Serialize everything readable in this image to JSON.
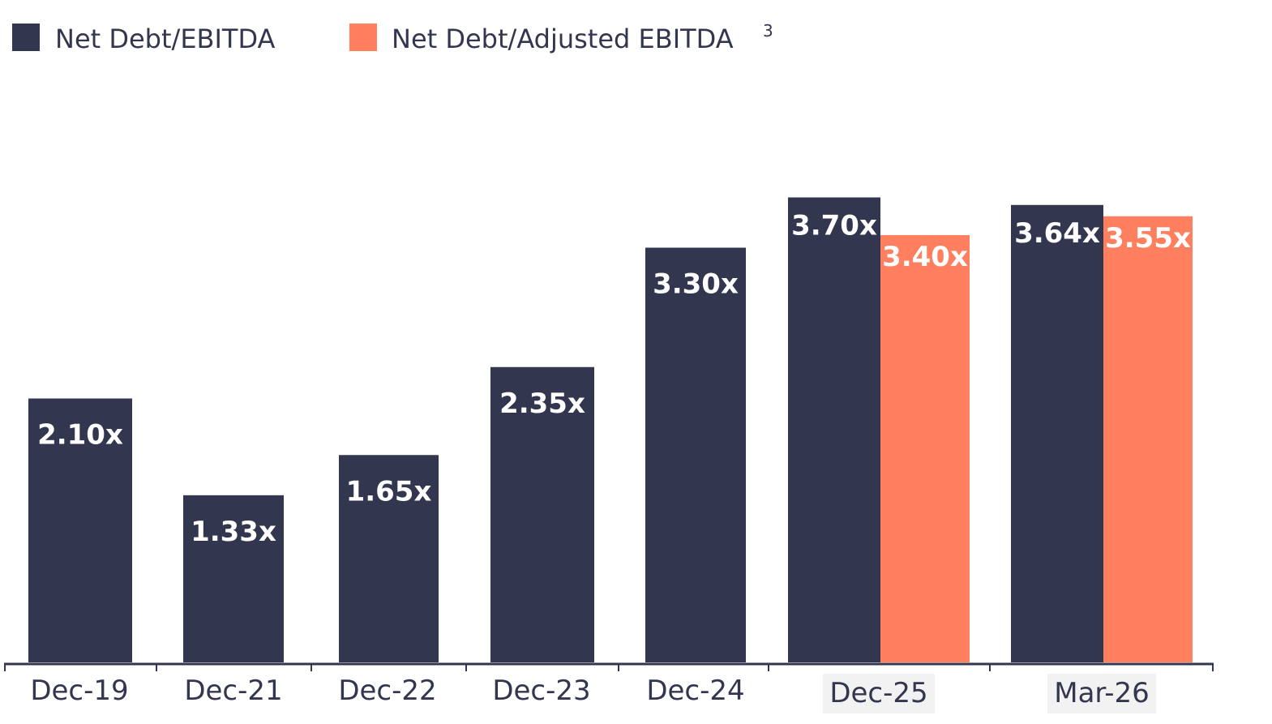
{
  "chart_data": {
    "type": "bar",
    "categories": [
      "Dec-19",
      "Dec-21",
      "Dec-22",
      "Dec-23",
      "Dec-24",
      "Dec-25",
      "Mar-26"
    ],
    "series": [
      {
        "name": "Net Debt/EBITDA",
        "color": "#33364f",
        "values": [
          2.1,
          1.33,
          1.65,
          2.35,
          3.3,
          3.7,
          3.64
        ],
        "labels": [
          "2.10x",
          "1.33x",
          "1.65x",
          "2.35x",
          "3.30x",
          "3.70x",
          "3.64x"
        ]
      },
      {
        "name": "Net Debt/Adjusted EBITDA",
        "name_superscript": "3",
        "color": "#ff7f5e",
        "values": [
          null,
          null,
          null,
          null,
          null,
          3.4,
          3.55
        ],
        "labels": [
          null,
          null,
          null,
          null,
          null,
          "3.40x",
          "3.55x"
        ]
      }
    ],
    "legend_position": "top-left",
    "grid": false
  }
}
